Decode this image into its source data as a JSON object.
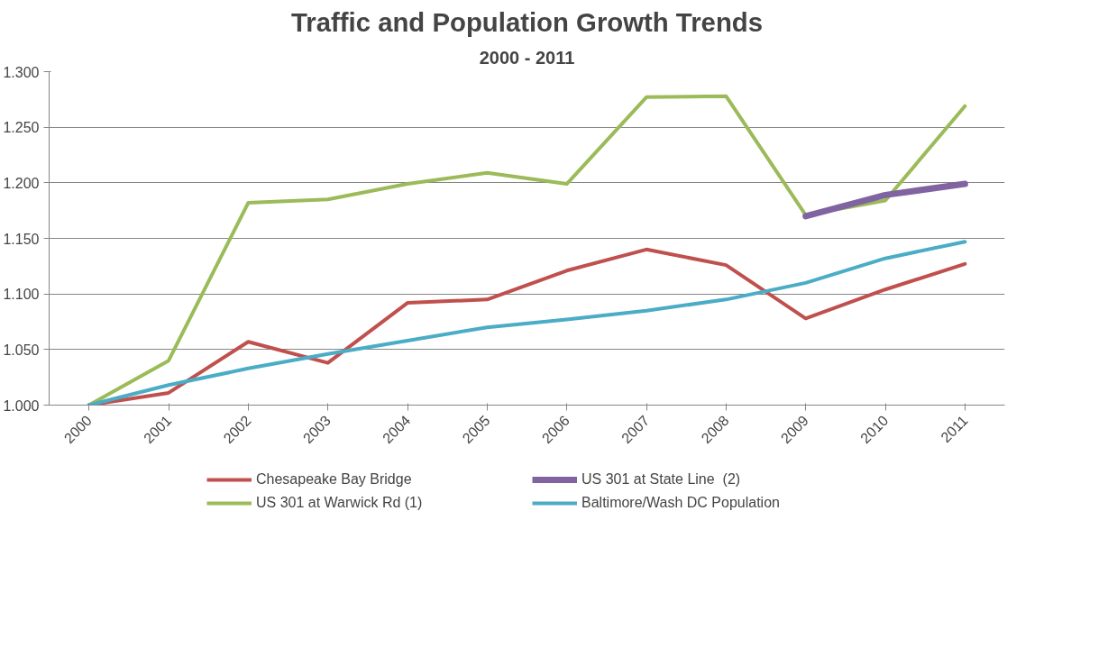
{
  "chart_data": {
    "type": "line",
    "title": "Traffic and Population Growth Trends",
    "subtitle": "2000 - 2011",
    "categories": [
      "2000",
      "2001",
      "2002",
      "2003",
      "2004",
      "2005",
      "2006",
      "2007",
      "2008",
      "2009",
      "2010",
      "2011"
    ],
    "series": [
      {
        "name": "Chesapeake Bay Bridge",
        "color": "#c0504d",
        "values": [
          1.0,
          1.011,
          1.057,
          1.038,
          1.092,
          1.095,
          1.121,
          1.14,
          1.126,
          1.078,
          1.104,
          1.127
        ]
      },
      {
        "name": "US 301 at Warwick Rd (1)",
        "color": "#9bbb59",
        "values": [
          1.0,
          1.04,
          1.182,
          1.185,
          1.199,
          1.209,
          1.199,
          1.277,
          1.278,
          1.171,
          1.184,
          1.269
        ]
      },
      {
        "name": "US 301 at State Line  (2)",
        "color": "#8064a2",
        "values": [
          null,
          null,
          null,
          null,
          null,
          null,
          null,
          null,
          null,
          1.17,
          1.189,
          1.199
        ]
      },
      {
        "name": "Baltimore/Wash DC Population",
        "color": "#4bacc6",
        "values": [
          1.0,
          1.018,
          1.033,
          1.046,
          1.058,
          1.07,
          1.077,
          1.085,
          1.095,
          1.11,
          1.132,
          1.147
        ]
      }
    ],
    "ylim": [
      1.0,
      1.3
    ],
    "yticks": [
      {
        "value": 1.0,
        "label": "1.000"
      },
      {
        "value": 1.05,
        "label": "1.050"
      },
      {
        "value": 1.1,
        "label": "1.100"
      },
      {
        "value": 1.15,
        "label": "1.150"
      },
      {
        "value": 1.2,
        "label": "1.200"
      },
      {
        "value": 1.25,
        "label": "1.250"
      },
      {
        "value": 1.3,
        "label": "1.300"
      }
    ],
    "grid": "y",
    "legend": "bottom",
    "marker": "none",
    "line_style": "solid"
  }
}
